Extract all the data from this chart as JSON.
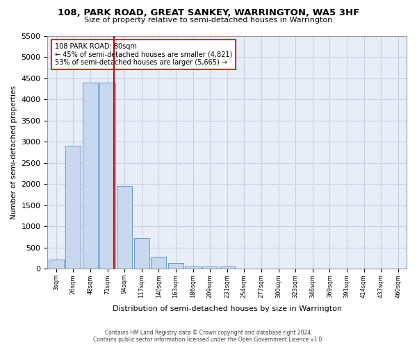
{
  "title": "108, PARK ROAD, GREAT SANKEY, WARRINGTON, WA5 3HF",
  "subtitle": "Size of property relative to semi-detached houses in Warrington",
  "xlabel": "Distribution of semi-detached houses by size in Warrington",
  "ylabel": "Number of semi-detached properties",
  "footer_line1": "Contains HM Land Registry data © Crown copyright and database right 2024.",
  "footer_line2": "Contains public sector information licensed under the Open Government Licence v3.0.",
  "categories": [
    "3sqm",
    "26sqm",
    "48sqm",
    "71sqm",
    "94sqm",
    "117sqm",
    "140sqm",
    "163sqm",
    "186sqm",
    "209sqm",
    "231sqm",
    "254sqm",
    "277sqm",
    "300sqm",
    "323sqm",
    "346sqm",
    "369sqm",
    "391sqm",
    "414sqm",
    "437sqm",
    "460sqm"
  ],
  "bar_heights": [
    220,
    2900,
    4400,
    4400,
    1950,
    730,
    290,
    130,
    60,
    60,
    60,
    0,
    0,
    0,
    0,
    0,
    0,
    0,
    0,
    0,
    0
  ],
  "bar_color": "#c8d8ee",
  "bar_edge_color": "#6699cc",
  "background_color": "#ffffff",
  "plot_bg_color": "#e8eef8",
  "grid_color": "#c8d0e0",
  "red_line_col_index": 3,
  "red_line_color": "#cc0000",
  "annotation_text_line1": "108 PARK ROAD: 80sqm",
  "annotation_text_line2": "← 45% of semi-detached houses are smaller (4,821)",
  "annotation_text_line3": "53% of semi-detached houses are larger (5,665) →",
  "ylim": [
    0,
    5500
  ],
  "yticks": [
    0,
    500,
    1000,
    1500,
    2000,
    2500,
    3000,
    3500,
    4000,
    4500,
    5000,
    5500
  ]
}
